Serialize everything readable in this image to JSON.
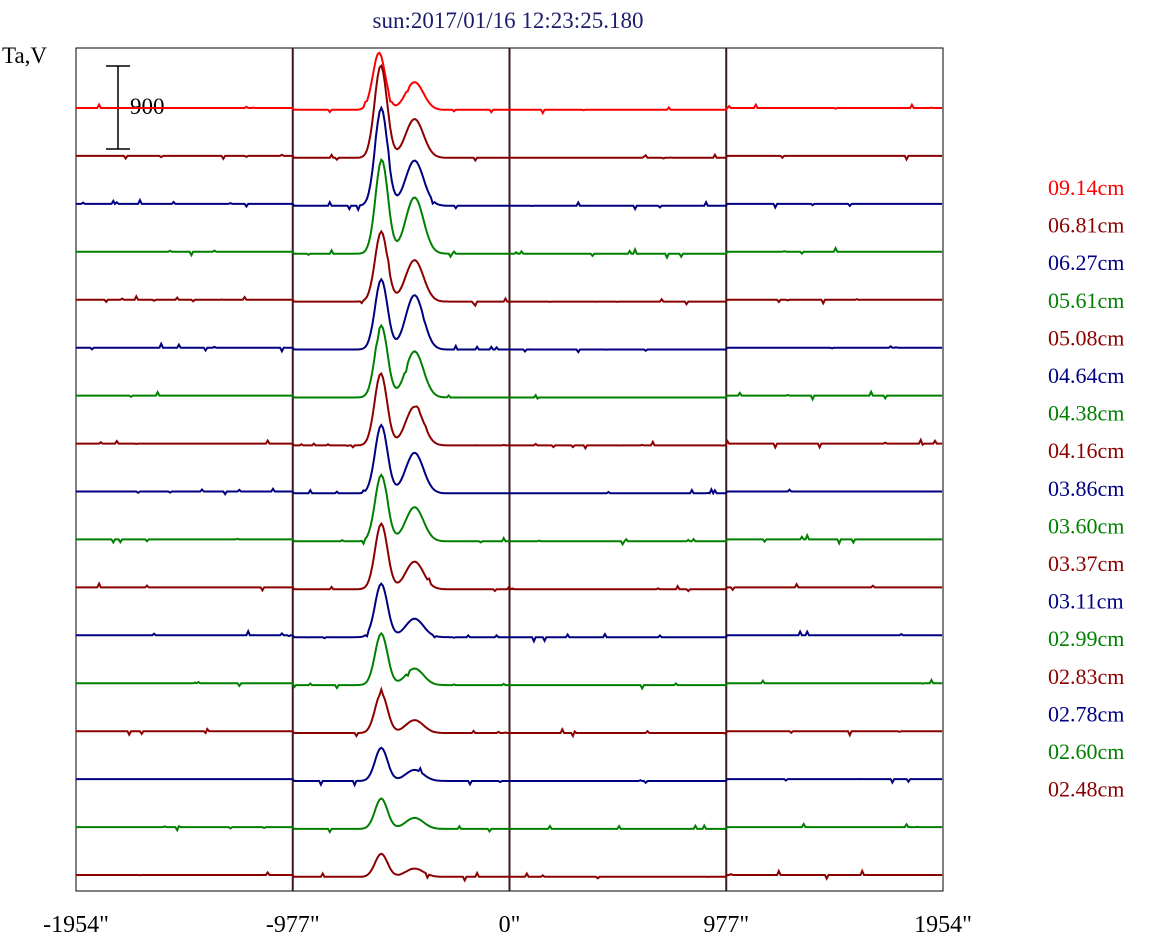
{
  "title": "sun:2017/01/16 12:23:25.180",
  "y_axis_label": "Ta,V",
  "scale_bar_label": "900",
  "chart_data": {
    "type": "line",
    "title": "sun:2017/01/16 12:23:25.180",
    "ylabel": "Ta,V",
    "xlabel": "",
    "x_unit": "arcsec",
    "xlim": [
      -1954,
      1954
    ],
    "x_ticks": [
      -1954,
      -977,
      0,
      977,
      1954
    ],
    "x_tick_labels": [
      "-1954\"",
      "-977\"",
      "0\"",
      "977\"",
      "1954\""
    ],
    "vertical_lines": [
      -977,
      0,
      977
    ],
    "scale_bar": 900,
    "grid": false,
    "legend_position": "right",
    "description_of_offsets": "stacked traces, each offset vertically",
    "series": [
      {
        "name": "09.14cm",
        "color": "#ff0000",
        "peaks": [
          {
            "x": -588,
            "amp": 620
          },
          {
            "x": -428,
            "amp": 300
          }
        ]
      },
      {
        "name": "06.81cm",
        "color": "#8b0000",
        "peaks": [
          {
            "x": -580,
            "amp": 1000
          },
          {
            "x": -428,
            "amp": 420
          }
        ]
      },
      {
        "name": "06.27cm",
        "color": "#000080",
        "peaks": [
          {
            "x": -578,
            "amp": 1060
          },
          {
            "x": -428,
            "amp": 490
          }
        ]
      },
      {
        "name": "05.61cm",
        "color": "#008000",
        "peaks": [
          {
            "x": -576,
            "amp": 1020
          },
          {
            "x": -428,
            "amp": 610
          }
        ]
      },
      {
        "name": "05.08cm",
        "color": "#8b0000",
        "peaks": [
          {
            "x": -578,
            "amp": 760
          },
          {
            "x": -428,
            "amp": 450
          }
        ]
      },
      {
        "name": "04.64cm",
        "color": "#000080",
        "peaks": [
          {
            "x": -578,
            "amp": 760
          },
          {
            "x": -428,
            "amp": 590
          }
        ]
      },
      {
        "name": "04.38cm",
        "color": "#008000",
        "peaks": [
          {
            "x": -578,
            "amp": 780
          },
          {
            "x": -428,
            "amp": 500
          }
        ]
      },
      {
        "name": "04.16cm",
        "color": "#8b0000",
        "peaks": [
          {
            "x": -580,
            "amp": 780
          },
          {
            "x": -428,
            "amp": 420
          }
        ]
      },
      {
        "name": "03.86cm",
        "color": "#000080",
        "peaks": [
          {
            "x": -578,
            "amp": 740
          },
          {
            "x": -428,
            "amp": 440
          }
        ]
      },
      {
        "name": "03.60cm",
        "color": "#008000",
        "peaks": [
          {
            "x": -578,
            "amp": 720
          },
          {
            "x": -428,
            "amp": 370
          }
        ]
      },
      {
        "name": "03.37cm",
        "color": "#8b0000",
        "peaks": [
          {
            "x": -578,
            "amp": 710
          },
          {
            "x": -428,
            "amp": 300
          }
        ]
      },
      {
        "name": "03.11cm",
        "color": "#000080",
        "peaks": [
          {
            "x": -578,
            "amp": 580
          },
          {
            "x": -428,
            "amp": 200
          }
        ]
      },
      {
        "name": "02.99cm",
        "color": "#008000",
        "peaks": [
          {
            "x": -578,
            "amp": 560
          },
          {
            "x": -428,
            "amp": 180
          }
        ]
      },
      {
        "name": "02.83cm",
        "color": "#8b0000",
        "peaks": [
          {
            "x": -578,
            "amp": 430
          },
          {
            "x": -428,
            "amp": 140
          }
        ]
      },
      {
        "name": "02.78cm",
        "color": "#000080",
        "peaks": [
          {
            "x": -578,
            "amp": 360
          },
          {
            "x": -428,
            "amp": 120
          }
        ]
      },
      {
        "name": "02.60cm",
        "color": "#008000",
        "peaks": [
          {
            "x": -578,
            "amp": 330
          },
          {
            "x": -428,
            "amp": 120
          }
        ]
      },
      {
        "name": "02.48cm",
        "color": "#8b0000",
        "peaks": [
          {
            "x": -578,
            "amp": 250
          },
          {
            "x": -428,
            "amp": 90
          }
        ]
      }
    ]
  }
}
